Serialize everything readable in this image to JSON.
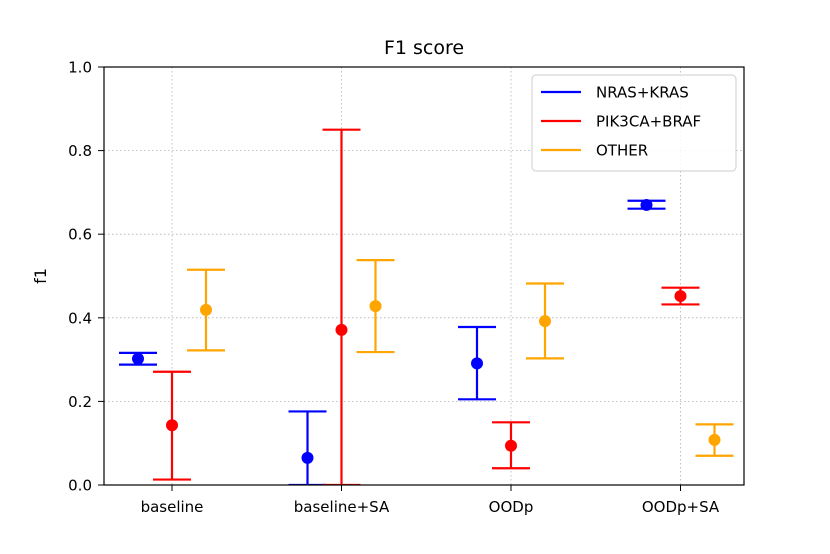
{
  "chart_data": {
    "type": "scatter",
    "title": "F1 score",
    "xlabel": "",
    "ylabel": "f1",
    "categories": [
      "baseline",
      "baseline+SA",
      "OODp",
      "OODp+SA"
    ],
    "ylim": [
      0.0,
      1.0
    ],
    "yticks": [
      "0.0",
      "0.2",
      "0.4",
      "0.6",
      "0.8",
      "1.0"
    ],
    "grid": true,
    "legend_position": "top-right",
    "series": [
      {
        "name": "NRAS+KRAS",
        "color": "#0000ff",
        "values": [
          0.302,
          0.065,
          0.291,
          0.67
        ],
        "lower": [
          0.288,
          0.0,
          0.205,
          0.661
        ],
        "upper": [
          0.316,
          0.176,
          0.378,
          0.68
        ]
      },
      {
        "name": "PIK3CA+BRAF",
        "color": "#ff0000",
        "values": [
          0.143,
          0.371,
          0.094,
          0.452
        ],
        "lower": [
          0.013,
          0.0,
          0.04,
          0.432
        ],
        "upper": [
          0.271,
          0.85,
          0.15,
          0.472
        ]
      },
      {
        "name": "OTHER",
        "color": "#ffa500",
        "values": [
          0.419,
          0.428,
          0.392,
          0.108
        ],
        "lower": [
          0.322,
          0.318,
          0.303,
          0.07
        ],
        "upper": [
          0.515,
          0.538,
          0.482,
          0.145
        ]
      }
    ]
  }
}
